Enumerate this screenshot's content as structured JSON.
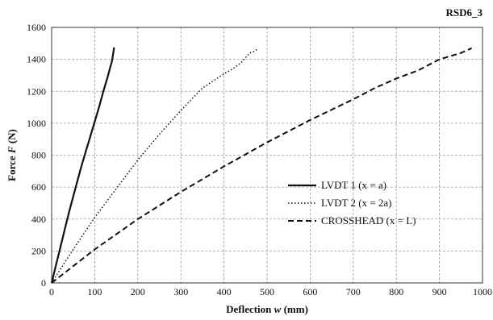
{
  "chart_data": {
    "type": "line",
    "title": "RSD6_3",
    "xlabel_prefix": "Deflection ",
    "xlabel_symbol": "w",
    "xlabel_suffix": " (mm)",
    "ylabel_prefix": "Force ",
    "ylabel_symbol": "F",
    "ylabel_suffix": " (N)",
    "xlim": [
      0,
      1000
    ],
    "ylim": [
      0,
      1600
    ],
    "xticks": [
      0,
      100,
      200,
      300,
      400,
      500,
      600,
      700,
      800,
      900,
      1000
    ],
    "yticks": [
      0,
      200,
      400,
      600,
      800,
      1000,
      1200,
      1400,
      1600
    ],
    "grid": "dashed",
    "legend_position": "center-right",
    "series": [
      {
        "name": "LVDT 1 (x = a)",
        "style": "solid",
        "color": "#111111",
        "x": [
          0,
          10,
          20,
          30,
          40,
          50,
          60,
          70,
          80,
          90,
          100,
          110,
          120,
          130,
          135,
          140,
          143,
          145
        ],
        "y": [
          0,
          110,
          220,
          330,
          440,
          540,
          640,
          740,
          830,
          920,
          1010,
          1100,
          1200,
          1290,
          1340,
          1390,
          1440,
          1475
        ]
      },
      {
        "name": "LVDT 2 (x = 2a)",
        "style": "dotted",
        "color": "#111111",
        "x": [
          0,
          50,
          100,
          150,
          200,
          250,
          300,
          350,
          400,
          420,
          440,
          450,
          460,
          470,
          480
        ],
        "y": [
          0,
          210,
          410,
          590,
          770,
          930,
          1080,
          1220,
          1310,
          1340,
          1380,
          1410,
          1440,
          1450,
          1470
        ]
      },
      {
        "name": "CROSSHEAD (x = L)",
        "style": "dashed",
        "color": "#111111",
        "x": [
          0,
          100,
          200,
          300,
          400,
          500,
          600,
          700,
          750,
          800,
          850,
          900,
          950,
          975
        ],
        "y": [
          0,
          210,
          400,
          570,
          730,
          880,
          1020,
          1150,
          1220,
          1280,
          1330,
          1400,
          1440,
          1470
        ]
      }
    ]
  }
}
